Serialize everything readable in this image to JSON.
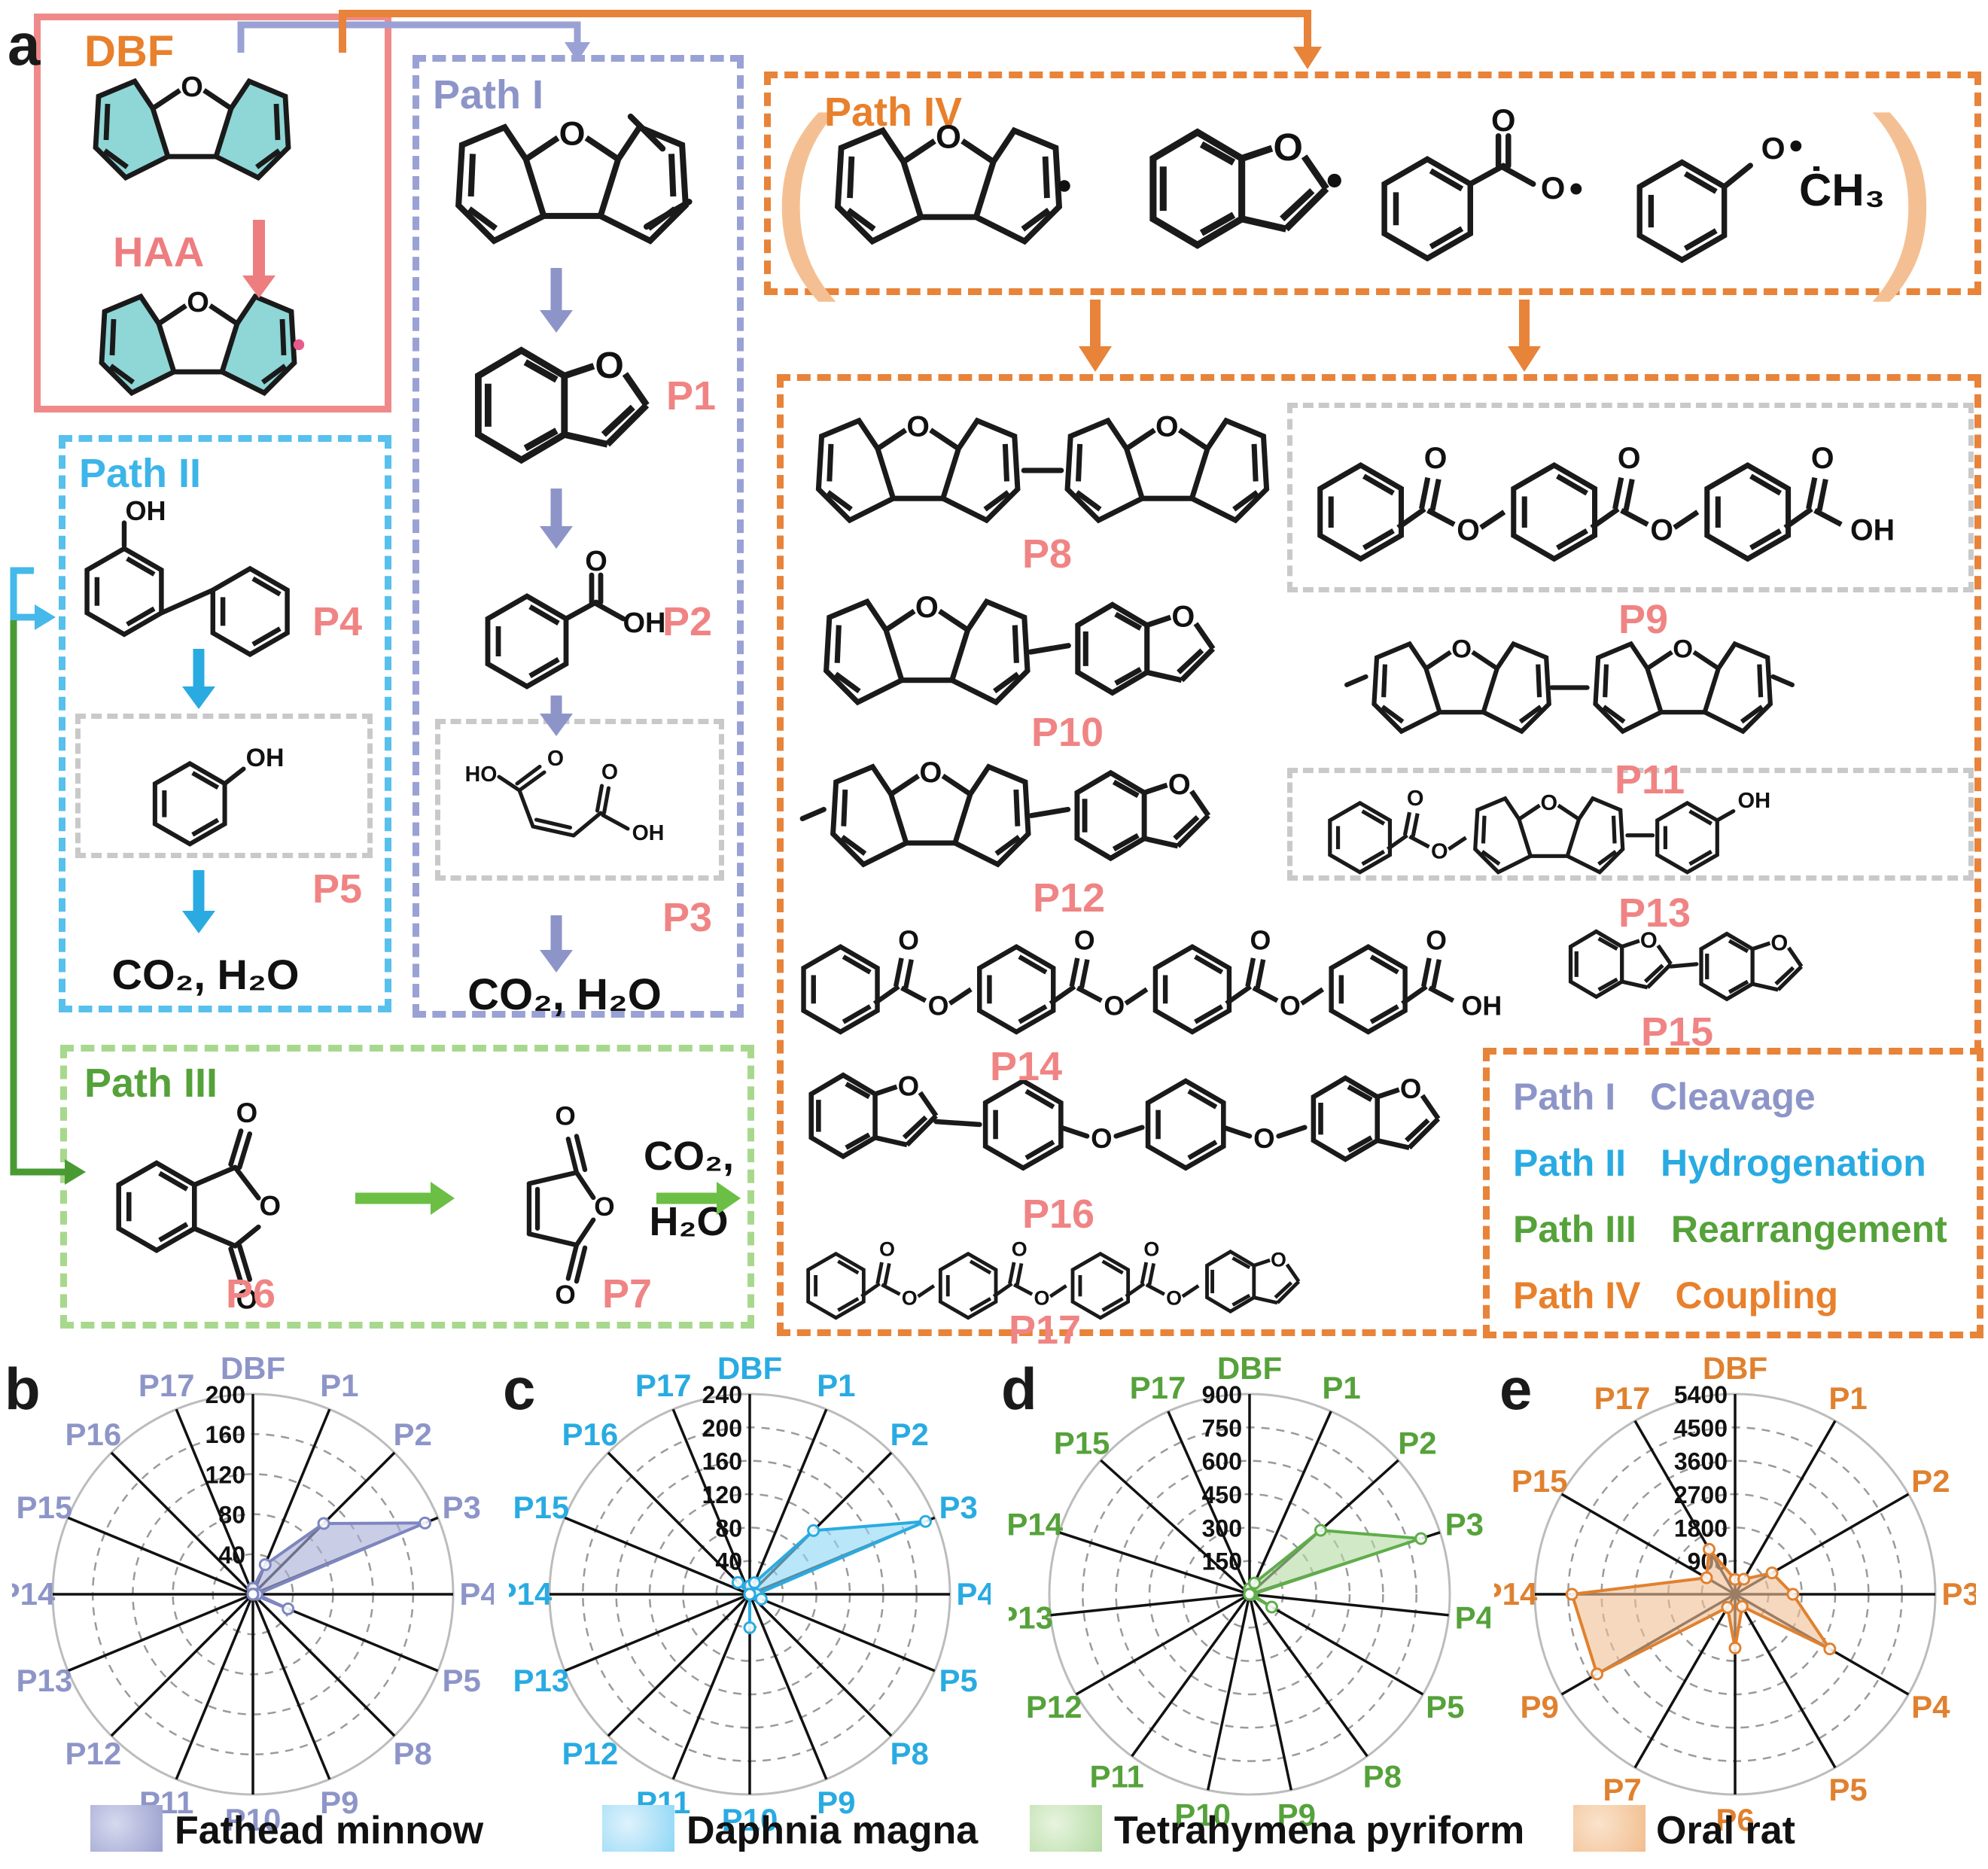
{
  "panel_a": {
    "label": "a",
    "dbf_box": {
      "title": "DBF",
      "step_label": "HAA"
    },
    "path1": {
      "title": "Path I",
      "labels": {
        "p1": "P1",
        "p2": "P2",
        "p3": "P3"
      },
      "sink": "CO₂, H₂O"
    },
    "path2": {
      "title": "Path II",
      "labels": {
        "p4": "P4",
        "p5": "P5"
      },
      "sink": "CO₂, H₂O"
    },
    "path3": {
      "title": "Path III",
      "labels": {
        "p6": "P6",
        "p7": "P7"
      },
      "sink_line1": "CO₂,",
      "sink_line2": "H₂O"
    },
    "path4": {
      "title": "Path IV",
      "methyl_radical": "ĊH₃",
      "labels": {
        "p8": "P8",
        "p9": "P9",
        "p10": "P10",
        "p11": "P11",
        "p12": "P12",
        "p13": "P13",
        "p14": "P14",
        "p15": "P15",
        "p16": "P16",
        "p17": "P17"
      }
    },
    "legend": [
      {
        "path": "Path I",
        "mechanism": "Cleavage",
        "color": "#8d95c8"
      },
      {
        "path": "Path II",
        "mechanism": "Hydrogenation",
        "color": "#29abe2"
      },
      {
        "path": "Path III",
        "mechanism": "Rearrangement",
        "color": "#55a23a"
      },
      {
        "path": "Path IV",
        "mechanism": "Coupling",
        "color": "#e8802c"
      }
    ],
    "atoms": {
      "O": "O",
      "OH": "OH",
      "HO": "HO"
    },
    "colors": {
      "dbf_ring_fill": "#8fd6d6",
      "haa": "#ee7d80",
      "dbf_title": "#e8802c",
      "product_label": "#f08484"
    }
  },
  "chart_data": {
    "note": "see charts array",
    "type": "radar"
  },
  "charts": [
    {
      "type": "radar",
      "panel": "b",
      "legend": "Fathead minnow",
      "label_color": "#8d95c8",
      "stroke": "#7d86c0",
      "fill": "#a9aed6",
      "max": 200,
      "rings": [
        40,
        80,
        120,
        160,
        200
      ],
      "axes": [
        "DBF",
        "P1",
        "P2",
        "P3",
        "P4",
        "P5",
        "P8",
        "P9",
        "P10",
        "P11",
        "P12",
        "P13",
        "P14",
        "P15",
        "P16",
        "P17"
      ],
      "values": [
        6,
        32,
        100,
        186,
        4,
        38,
        0,
        0,
        0,
        0,
        0,
        0,
        0,
        0,
        0,
        0
      ]
    },
    {
      "type": "radar",
      "panel": "c",
      "legend": "Daphnia magna",
      "label_color": "#29abe2",
      "stroke": "#29abe2",
      "fill": "#8ed7f5",
      "max": 240,
      "rings": [
        40,
        80,
        120,
        160,
        200,
        240
      ],
      "axes": [
        "DBF",
        "P1",
        "P2",
        "P3",
        "P4",
        "P5",
        "P8",
        "P9",
        "P10",
        "P11",
        "P12",
        "P13",
        "P14",
        "P15",
        "P16",
        "P17"
      ],
      "values": [
        10,
        15,
        108,
        228,
        8,
        15,
        0,
        0,
        40,
        0,
        0,
        0,
        0,
        0,
        20,
        0
      ]
    },
    {
      "type": "radar",
      "panel": "d",
      "legend": "Tetrahymena pyriform",
      "label_color": "#55a23a",
      "stroke": "#5fae49",
      "fill": "#b5dba4",
      "max": 900,
      "rings": [
        150,
        300,
        450,
        600,
        750,
        900
      ],
      "axes": [
        "DBF",
        "P1",
        "P2",
        "P3",
        "P4",
        "P5",
        "P8",
        "P9",
        "P10",
        "P11",
        "P12",
        "P13",
        "P14",
        "P15",
        "P17"
      ],
      "values": [
        25,
        55,
        430,
        810,
        10,
        115,
        0,
        0,
        0,
        0,
        0,
        0,
        0,
        0,
        0
      ]
    },
    {
      "type": "radar",
      "panel": "e",
      "legend": "Oral rat",
      "label_color": "#e0812f",
      "stroke": "#e0812f",
      "fill": "#f0c096",
      "max": 5400,
      "rings": [
        900,
        1800,
        2700,
        3600,
        4500,
        5400
      ],
      "axes": [
        "DBF",
        "P1",
        "P2",
        "P3",
        "P4",
        "P5",
        "P6",
        "P7",
        "P9",
        "P14",
        "P15",
        "P17"
      ],
      "values": [
        400,
        470,
        1150,
        1560,
        2950,
        380,
        1450,
        410,
        4300,
        4400,
        890,
        1400
      ]
    }
  ]
}
